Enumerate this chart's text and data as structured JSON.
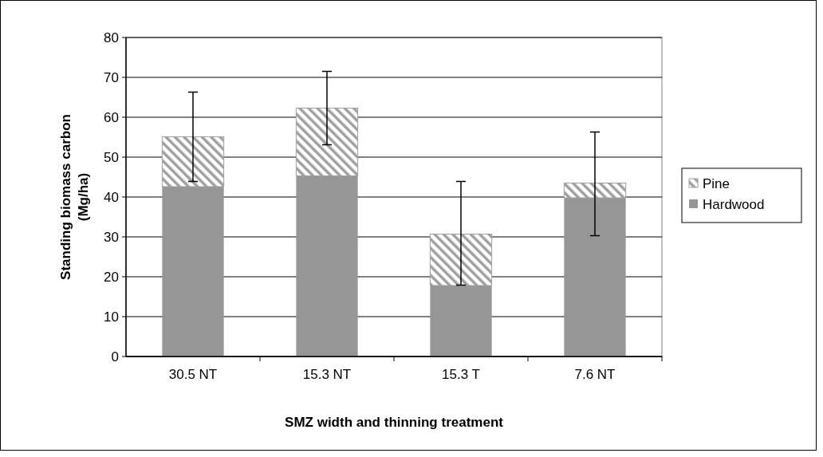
{
  "chart_data": {
    "type": "bar",
    "xlabel": "SMZ width and thinning treatment",
    "ylabel": "Standing biomass carbon (Mg/ha)",
    "categories": [
      "30.5 NT",
      "15.3 NT",
      "15.3 T",
      "7.6 NT"
    ],
    "stacked": true,
    "series": [
      {
        "name": "Hardwood",
        "color": "#969696",
        "values": [
          42.6,
          45.3,
          17.8,
          39.8
        ]
      },
      {
        "name": "Pine",
        "color": "#a0a0a0",
        "values": [
          12.5,
          17.0,
          12.9,
          3.7
        ],
        "errors": [
          [
            43.9,
            66.3
          ],
          [
            53.1,
            71.5
          ],
          [
            17.9,
            43.9
          ],
          [
            30.3,
            56.3
          ]
        ]
      }
    ],
    "ylim": [
      0,
      80
    ],
    "yticks": [
      0,
      10,
      20,
      30,
      40,
      50,
      60,
      70,
      80
    ],
    "grid": "y",
    "legend": "right"
  }
}
